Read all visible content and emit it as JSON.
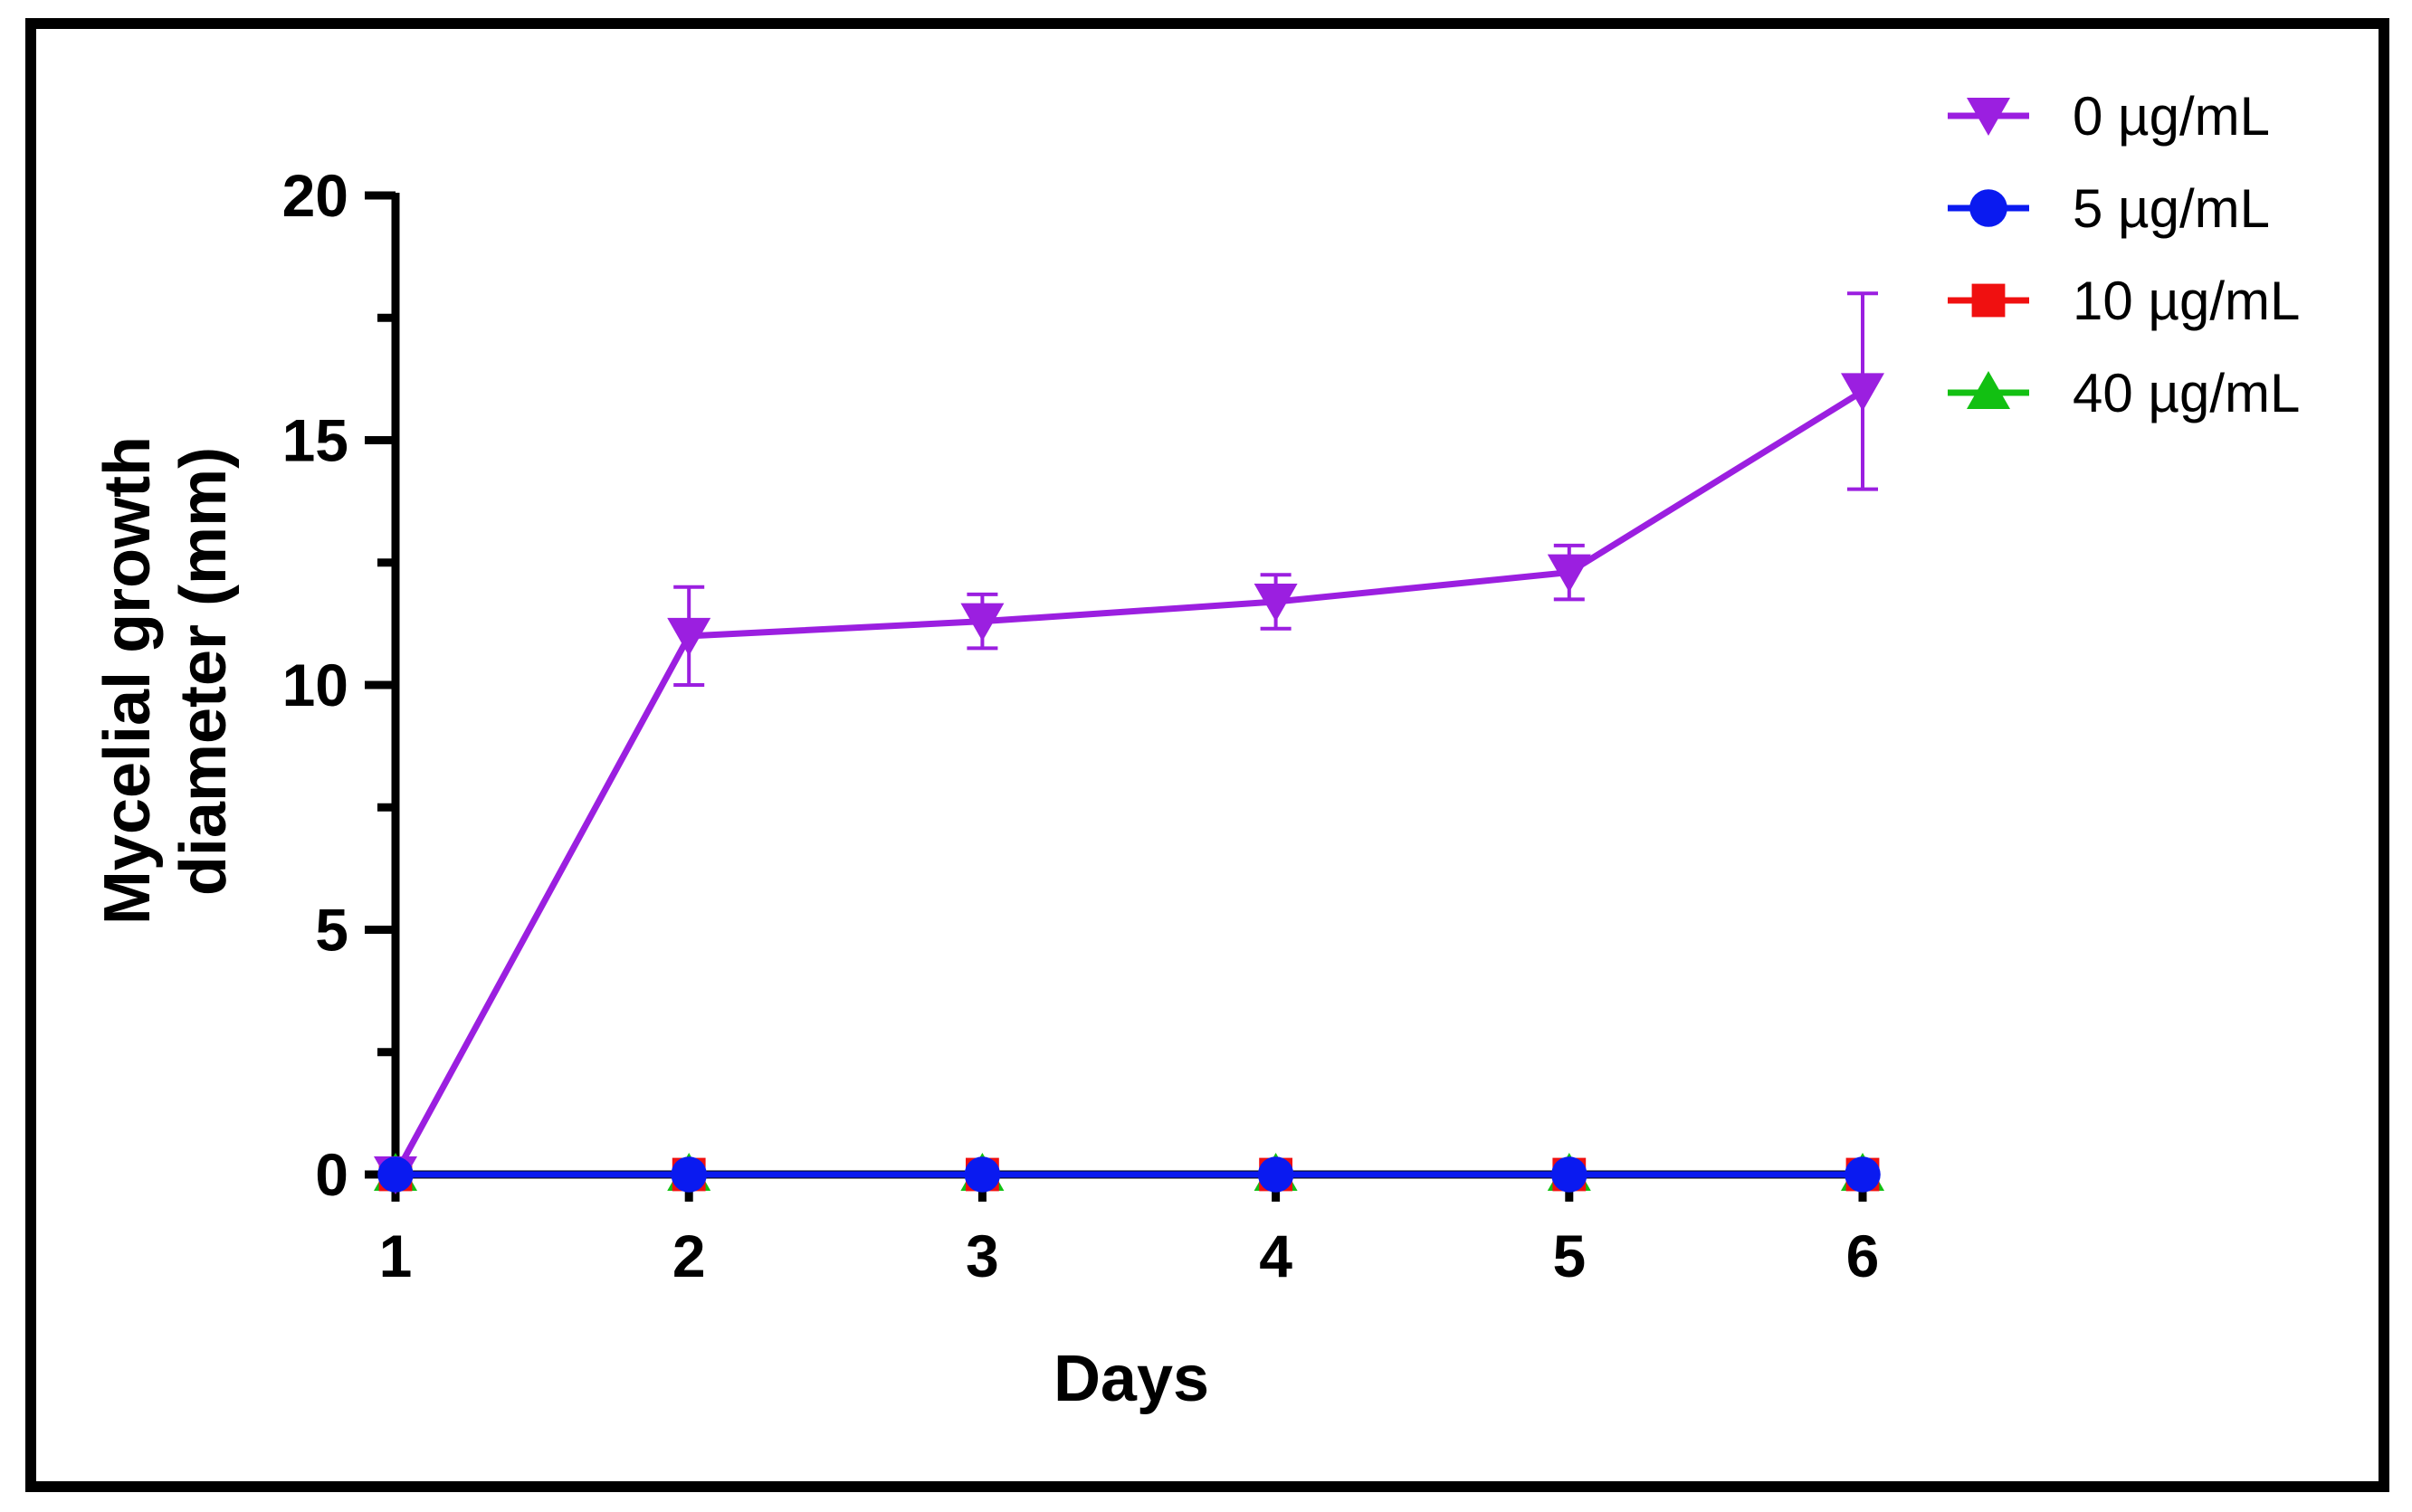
{
  "chart_data": {
    "type": "line",
    "title": "",
    "xlabel": "Days",
    "ylabel": "Mycelial growth diameter (mm)",
    "x": [
      1,
      2,
      3,
      4,
      5,
      6
    ],
    "xlim": [
      1,
      6
    ],
    "ylim": [
      0,
      20
    ],
    "y_ticks": [
      0,
      5,
      10,
      15,
      20
    ],
    "x_ticks": [
      1,
      2,
      3,
      4,
      5,
      6
    ],
    "y_minor_tick_step": 2.5,
    "grid": false,
    "legend_position": "top-right",
    "series": [
      {
        "name": "0 µg/mL",
        "marker": "triangle-down",
        "color": "#9B1FE0",
        "values": [
          0,
          11.0,
          11.3,
          11.7,
          12.3,
          16.0
        ],
        "errors": [
          0,
          1.0,
          0.55,
          0.55,
          0.55,
          2.0
        ]
      },
      {
        "name": "5 µg/mL",
        "marker": "circle",
        "color": "#0A1AF0",
        "values": [
          0,
          0,
          0,
          0,
          0,
          0
        ],
        "errors": [
          0,
          0,
          0,
          0,
          0,
          0
        ]
      },
      {
        "name": "10 µg/mL",
        "marker": "square",
        "color": "#F01010",
        "values": [
          0,
          0,
          0,
          0,
          0,
          0
        ],
        "errors": [
          0,
          0,
          0,
          0,
          0,
          0
        ]
      },
      {
        "name": "40 µg/mL",
        "marker": "triangle-up",
        "color": "#12C012",
        "values": [
          0,
          0,
          0,
          0,
          0,
          0
        ],
        "errors": [
          0,
          0,
          0,
          0,
          0,
          0
        ]
      }
    ]
  }
}
